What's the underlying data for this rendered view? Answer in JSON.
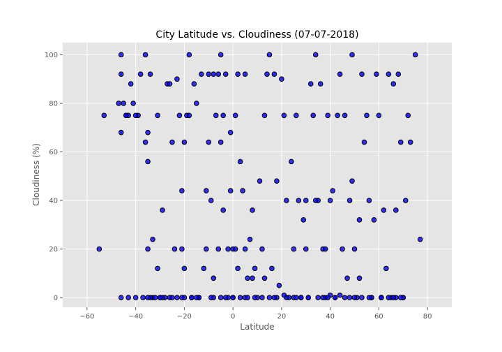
{
  "chart_data": {
    "type": "scatter",
    "title": "City Latitude vs. Cloudiness (07-07-2018)",
    "xlabel": "Latitude",
    "ylabel": "Cloudiness (%)",
    "xlim": [
      -70,
      90
    ],
    "ylim": [
      -4,
      105
    ],
    "xticks": [
      -60,
      -40,
      -20,
      0,
      20,
      40,
      60,
      80
    ],
    "yticks": [
      0,
      20,
      40,
      60,
      80,
      100
    ],
    "grid": true,
    "colors": {
      "background": "#e5e5e5",
      "grid": "#ffffff",
      "marker_fill": "#0000ff",
      "marker_edge": "#000000"
    },
    "x": [
      -55,
      -53,
      -47,
      -46,
      -46,
      -46,
      -45,
      -44,
      -43,
      -43,
      -41,
      -40,
      -39,
      -38,
      -36,
      -36,
      -35,
      -35,
      -35,
      -34,
      -33,
      -33,
      -32,
      -31,
      -30,
      -29,
      -28,
      -27,
      -26,
      -25,
      -24,
      -23,
      -22,
      -21,
      -21,
      -20,
      -20,
      -19,
      -18,
      -18,
      -17,
      -16,
      -15,
      -14,
      -13,
      -12,
      -11,
      -10,
      -10,
      -9,
      -8,
      -8,
      -7,
      -6,
      -5,
      -5,
      -4,
      -4,
      -3,
      -2,
      -1,
      -1,
      0,
      0,
      1,
      1,
      2,
      3,
      4,
      5,
      5,
      6,
      7,
      8,
      9,
      10,
      11,
      12,
      13,
      14,
      15,
      16,
      17,
      18,
      19,
      20,
      21,
      22,
      23,
      24,
      25,
      26,
      27,
      28,
      29,
      30,
      31,
      32,
      33,
      34,
      35,
      36,
      37,
      37,
      38,
      39,
      40,
      40,
      41,
      42,
      43,
      44,
      45,
      46,
      47,
      48,
      49,
      49,
      50,
      51,
      52,
      53,
      54,
      55,
      56,
      57,
      58,
      59,
      60,
      61,
      62,
      63,
      64,
      65,
      66,
      67,
      68,
      69,
      70,
      71,
      72,
      73,
      75,
      77,
      -46,
      -44,
      -42,
      -40,
      -37,
      -34,
      -31,
      -29,
      -26,
      -23,
      -20,
      -17,
      -14,
      -11,
      -8,
      -5,
      -2,
      2,
      5,
      8,
      12,
      15,
      18,
      22,
      25,
      28,
      31,
      34,
      38,
      42,
      46,
      50,
      53,
      57,
      61,
      64,
      67,
      70,
      -35,
      -30,
      -25,
      -21,
      -15,
      -9,
      -6,
      -3,
      0,
      3,
      6,
      9,
      13,
      17,
      21,
      26,
      30,
      35,
      39,
      44,
      48,
      52,
      56,
      61,
      66,
      69
    ],
    "y": [
      20,
      75,
      80,
      100,
      92,
      0,
      80,
      75,
      0,
      75,
      80,
      0,
      75,
      92,
      100,
      64,
      56,
      68,
      20,
      92,
      0,
      24,
      0,
      12,
      0,
      36,
      0,
      88,
      88,
      64,
      20,
      90,
      75,
      44,
      20,
      64,
      0,
      75,
      100,
      75,
      0,
      88,
      80,
      0,
      92,
      12,
      44,
      92,
      64,
      40,
      0,
      92,
      75,
      20,
      64,
      100,
      36,
      75,
      92,
      20,
      68,
      44,
      0,
      20,
      20,
      75,
      92,
      56,
      44,
      20,
      92,
      8,
      24,
      36,
      12,
      0,
      48,
      20,
      75,
      92,
      100,
      12,
      92,
      48,
      5,
      90,
      75,
      40,
      0,
      56,
      20,
      75,
      40,
      0,
      32,
      40,
      0,
      88,
      75,
      100,
      40,
      88,
      20,
      0,
      20,
      75,
      40,
      1,
      44,
      0,
      75,
      92,
      20,
      75,
      8,
      40,
      100,
      48,
      20,
      0,
      32,
      92,
      64,
      75,
      40,
      0,
      32,
      92,
      75,
      0,
      36,
      12,
      92,
      0,
      88,
      36,
      92,
      64,
      0,
      40,
      75,
      64,
      100,
      24,
      68,
      75,
      88,
      75,
      0,
      0,
      75,
      0,
      0,
      0,
      12,
      0,
      0,
      20,
      8,
      0,
      0,
      12,
      0,
      8,
      0,
      0,
      0,
      0,
      0,
      0,
      0,
      40,
      0,
      0,
      0,
      0,
      0,
      0,
      0,
      0,
      0,
      0,
      0,
      0,
      0,
      0,
      0,
      0,
      92,
      0,
      0,
      0,
      0,
      0,
      8,
      0,
      1,
      0,
      20,
      0,
      0,
      1,
      0,
      8,
      0,
      0,
      0,
      0
    ]
  }
}
